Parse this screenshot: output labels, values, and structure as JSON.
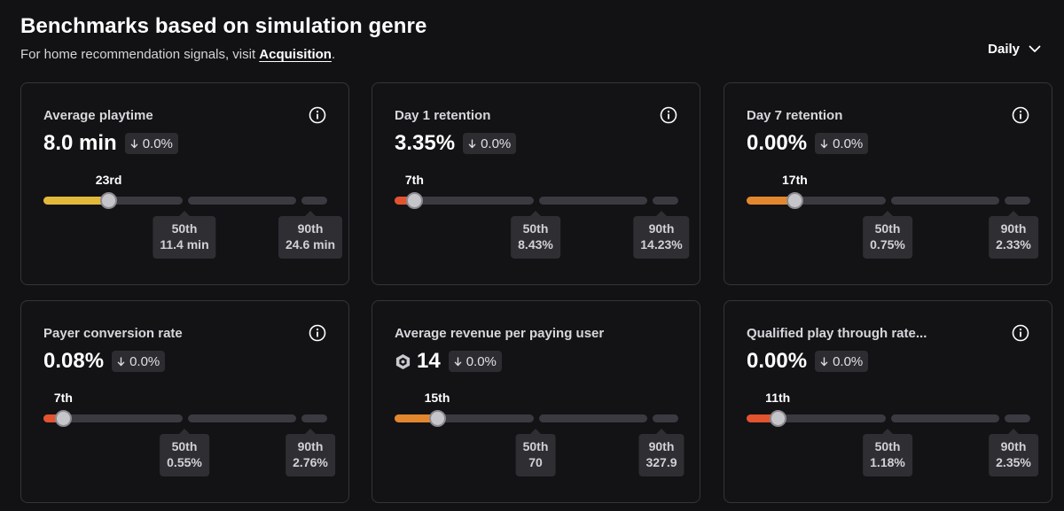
{
  "header": {
    "title": "Benchmarks based on simulation genre",
    "subtitle_prefix": "For home recommendation signals, visit ",
    "subtitle_link": "Acquisition",
    "subtitle_suffix": ".",
    "period": "Daily"
  },
  "colors": {
    "yellow": "#e2b93b",
    "orange": "#e3872f",
    "red": "#e3532f"
  },
  "cards": [
    {
      "title": "Average playtime",
      "value": "8.0 min",
      "delta": "0.0%",
      "rank": "23rd",
      "percentile": 0.23,
      "fill_color": "yellow",
      "p50_label": "50th",
      "p50_value": "11.4 min",
      "p90_label": "90th",
      "p90_value": "24.6 min",
      "icon": "info-icon"
    },
    {
      "title": "Day 1 retention",
      "value": "3.35%",
      "delta": "0.0%",
      "rank": "7th",
      "percentile": 0.07,
      "fill_color": "red",
      "p50_label": "50th",
      "p50_value": "8.43%",
      "p90_label": "90th",
      "p90_value": "14.23%",
      "icon": "info-icon"
    },
    {
      "title": "Day 7 retention",
      "value": "0.00%",
      "delta": "0.0%",
      "rank": "17th",
      "percentile": 0.17,
      "fill_color": "orange",
      "p50_label": "50th",
      "p50_value": "0.75%",
      "p90_label": "90th",
      "p90_value": "2.33%",
      "icon": "info-icon"
    },
    {
      "title": "Payer conversion rate",
      "value": "0.08%",
      "delta": "0.0%",
      "rank": "7th",
      "percentile": 0.07,
      "fill_color": "red",
      "p50_label": "50th",
      "p50_value": "0.55%",
      "p90_label": "90th",
      "p90_value": "2.76%",
      "icon": "info-icon"
    },
    {
      "title": "Average revenue per paying user",
      "value": "14",
      "value_icon": "robux-icon",
      "delta": "0.0%",
      "rank": "15th",
      "percentile": 0.15,
      "fill_color": "orange",
      "p50_label": "50th",
      "p50_value": "70",
      "p90_label": "90th",
      "p90_value": "327.9",
      "icon": null
    },
    {
      "title": "Qualified play through rate...",
      "value": "0.00%",
      "delta": "0.0%",
      "rank": "11th",
      "percentile": 0.11,
      "fill_color": "red",
      "p50_label": "50th",
      "p50_value": "1.18%",
      "p90_label": "90th",
      "p90_value": "2.35%",
      "icon": "info-icon"
    }
  ]
}
